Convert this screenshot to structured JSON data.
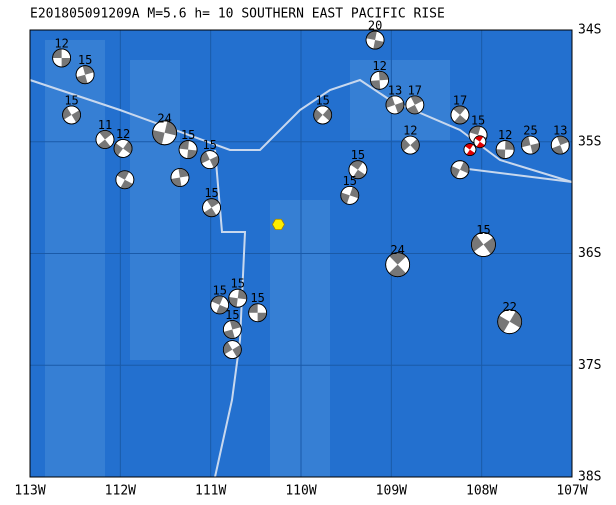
{
  "title": "E201805091209A M=5.6 h= 10 SOUTHERN EAST PACIFIC RISE",
  "lonlim": [
    -113,
    -107
  ],
  "latlim": [
    -34,
    -38
  ],
  "lonticks": [
    {
      "value": -113,
      "label": "113W"
    },
    {
      "value": -112,
      "label": "112W"
    },
    {
      "value": -111,
      "label": "111W"
    },
    {
      "value": -110,
      "label": "110W"
    },
    {
      "value": -109,
      "label": "109W"
    },
    {
      "value": -108,
      "label": "108W"
    },
    {
      "value": -107,
      "label": "107W"
    }
  ],
  "latticks": [
    {
      "value": -34,
      "label": "34S"
    },
    {
      "value": -35,
      "label": "35S"
    },
    {
      "value": -36,
      "label": "36S"
    },
    {
      "value": -37,
      "label": "37S"
    },
    {
      "value": -38,
      "label": "38S"
    }
  ],
  "epicenter": {
    "lon": -110.25,
    "lat": -35.74
  },
  "events": [
    {
      "lon": -112.65,
      "lat": -34.25,
      "depth": 12
    },
    {
      "lon": -112.39,
      "lat": -34.4,
      "depth": 15
    },
    {
      "lon": -112.54,
      "lat": -34.76,
      "depth": 15
    },
    {
      "lon": -112.17,
      "lat": -34.98,
      "depth": 11
    },
    {
      "lon": -111.97,
      "lat": -35.06,
      "depth": 12
    },
    {
      "lon": -111.95,
      "lat": -35.34
    },
    {
      "lon": -111.51,
      "lat": -34.92,
      "depth": 24
    },
    {
      "lon": -111.25,
      "lat": -35.07,
      "depth": 15
    },
    {
      "lon": -111.34,
      "lat": -35.32
    },
    {
      "lon": -111.01,
      "lat": -35.16,
      "depth": 15
    },
    {
      "lon": -110.99,
      "lat": -35.59,
      "depth": 15
    },
    {
      "lon": -109.76,
      "lat": -34.76,
      "depth": 15
    },
    {
      "lon": -109.37,
      "lat": -35.25,
      "depth": 15
    },
    {
      "lon": -109.46,
      "lat": -35.48,
      "depth": 15
    },
    {
      "lon": -109.18,
      "lat": -34.09,
      "depth": 20
    },
    {
      "lon": -109.13,
      "lat": -34.45,
      "depth": 12
    },
    {
      "lon": -108.96,
      "lat": -34.67,
      "depth": 13
    },
    {
      "lon": -108.74,
      "lat": -34.67,
      "depth": 17
    },
    {
      "lon": -108.79,
      "lat": -35.03,
      "depth": 12
    },
    {
      "lon": -108.24,
      "lat": -34.76,
      "depth": 17
    },
    {
      "lon": -108.24,
      "lat": -35.25
    },
    {
      "lon": -108.04,
      "lat": -34.94,
      "depth": 15
    },
    {
      "lon": -107.74,
      "lat": -35.07,
      "depth": 12
    },
    {
      "lon": -107.46,
      "lat": -35.03,
      "depth": 25
    },
    {
      "lon": -107.13,
      "lat": -35.03,
      "depth": 13
    },
    {
      "lon": -107.98,
      "lat": -35.92,
      "depth": 15
    },
    {
      "lon": -108.93,
      "lat": -36.1,
      "depth": 24
    },
    {
      "lon": -107.69,
      "lat": -36.61,
      "depth": 22
    },
    {
      "lon": -110.9,
      "lat": -36.46,
      "depth": 15
    },
    {
      "lon": -110.7,
      "lat": -36.4,
      "depth": 15
    },
    {
      "lon": -110.48,
      "lat": -36.53,
      "depth": 15
    },
    {
      "lon": -110.76,
      "lat": -36.68,
      "depth": 15
    },
    {
      "lon": -110.76,
      "lat": -36.86
    }
  ],
  "mainshocks": [
    {
      "lon": -108.13,
      "lat": -35.07
    },
    {
      "lon": -108.02,
      "lat": -35.0
    }
  ]
}
